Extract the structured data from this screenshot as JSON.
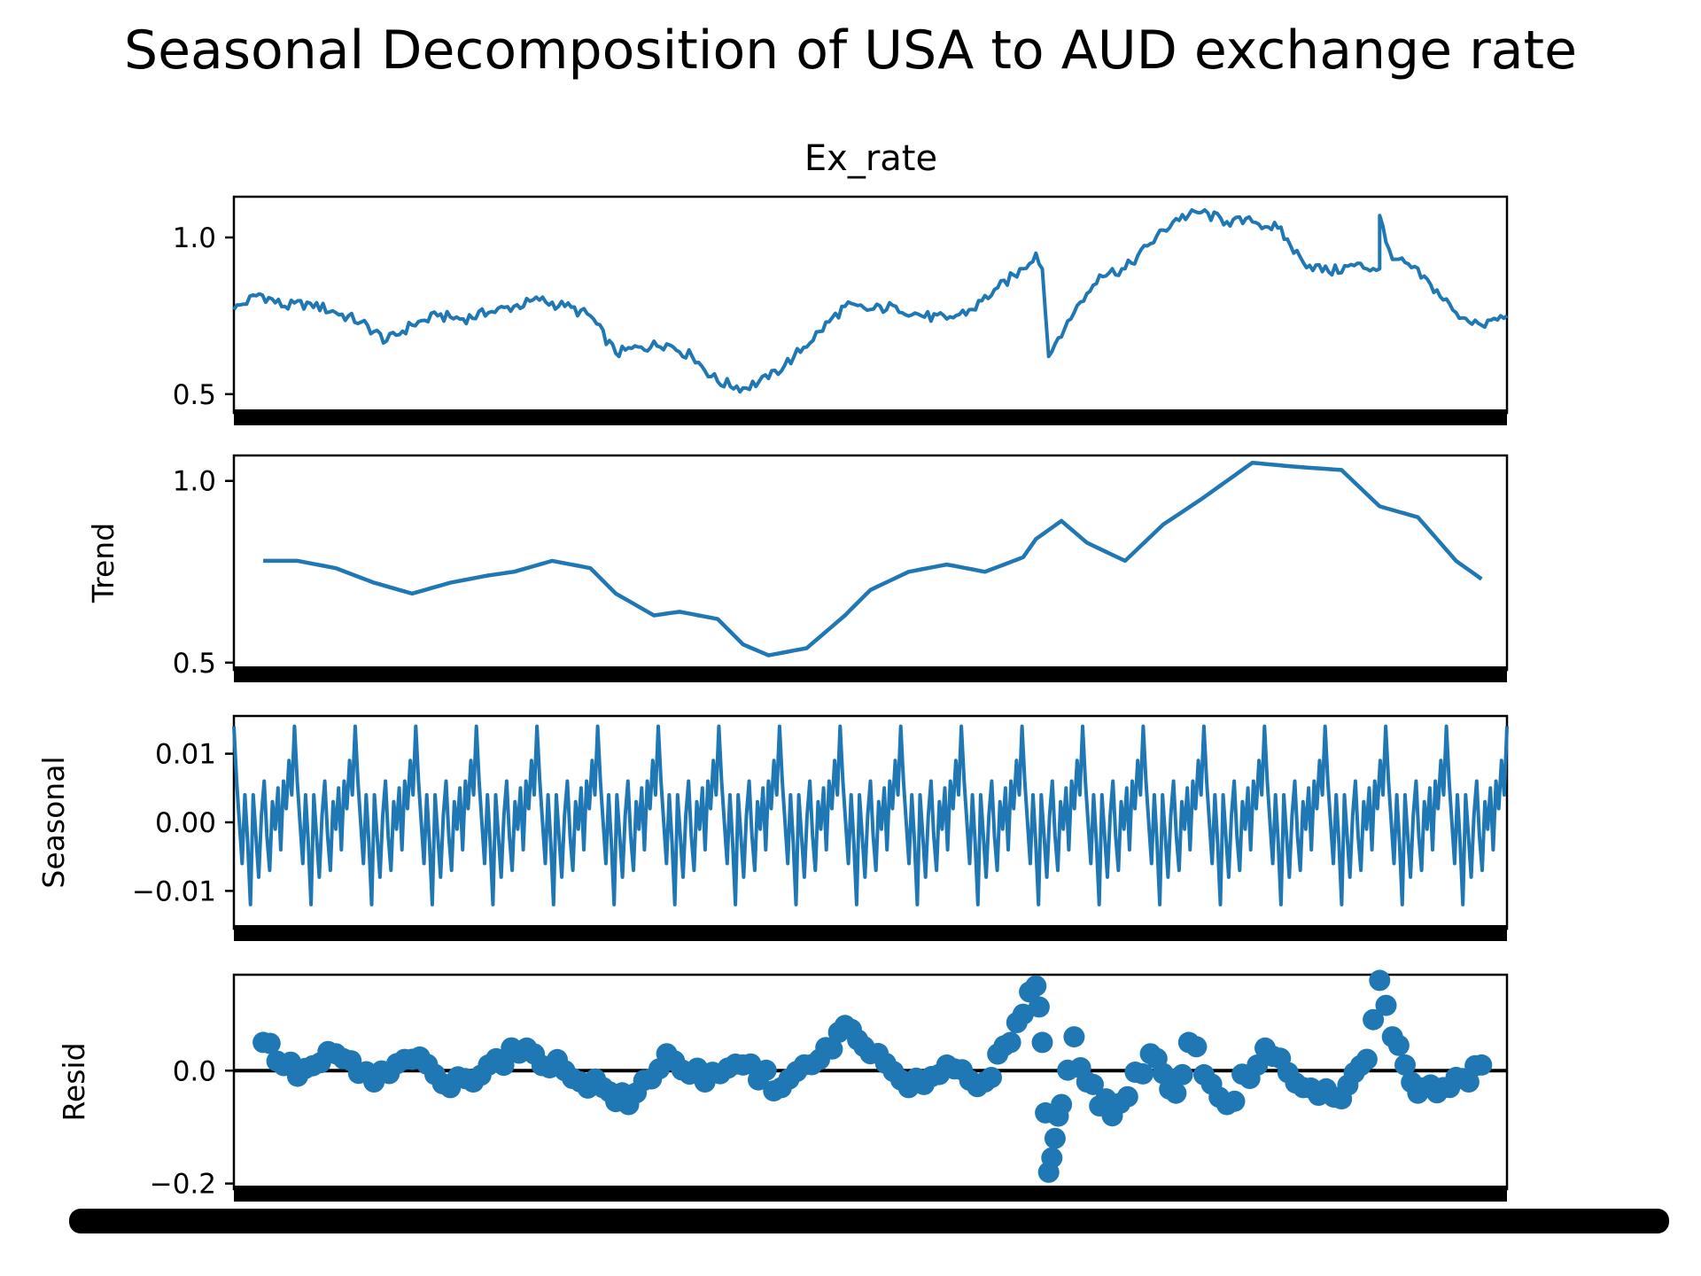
{
  "title": "Seasonal Decomposition of USA to AUD exchange rate",
  "chart_data": [
    {
      "type": "line",
      "panel_title": "Ex_rate",
      "ylabel": "",
      "ylim": [
        0.44,
        1.13
      ],
      "yticks": [
        0.5,
        1.0
      ],
      "ytick_labels": [
        "0.5",
        "1.0"
      ],
      "grid": false,
      "color": "#1f77b4",
      "x": [
        0,
        0.02,
        0.04,
        0.06,
        0.08,
        0.1,
        0.12,
        0.14,
        0.16,
        0.18,
        0.2,
        0.22,
        0.24,
        0.26,
        0.28,
        0.3,
        0.32,
        0.34,
        0.36,
        0.38,
        0.4,
        0.42,
        0.44,
        0.46,
        0.48,
        0.5,
        0.52,
        0.54,
        0.56,
        0.58,
        0.6,
        0.62,
        0.63,
        0.635,
        0.64,
        0.645,
        0.66,
        0.68,
        0.7,
        0.72,
        0.74,
        0.76,
        0.78,
        0.8,
        0.82,
        0.84,
        0.86,
        0.88,
        0.9,
        0.9,
        0.91,
        0.92,
        0.94,
        0.96,
        0.98,
        1.0
      ],
      "values": [
        0.77,
        0.82,
        0.78,
        0.79,
        0.76,
        0.73,
        0.67,
        0.72,
        0.75,
        0.74,
        0.76,
        0.78,
        0.8,
        0.78,
        0.75,
        0.63,
        0.65,
        0.66,
        0.62,
        0.54,
        0.52,
        0.55,
        0.62,
        0.7,
        0.78,
        0.77,
        0.78,
        0.75,
        0.74,
        0.77,
        0.84,
        0.9,
        0.95,
        0.9,
        0.62,
        0.66,
        0.76,
        0.88,
        0.9,
        0.98,
        1.06,
        1.08,
        1.05,
        1.05,
        1.03,
        0.92,
        0.89,
        0.91,
        0.9,
        1.07,
        0.93,
        0.92,
        0.85,
        0.76,
        0.72,
        0.75
      ]
    },
    {
      "type": "line",
      "panel_title": "",
      "ylabel": "Trend",
      "ylim": [
        0.48,
        1.07
      ],
      "yticks": [
        0.5,
        1.0
      ],
      "ytick_labels": [
        "0.5",
        "1.0"
      ],
      "grid": false,
      "color": "#1f77b4",
      "x": [
        0.023,
        0.05,
        0.08,
        0.11,
        0.14,
        0.17,
        0.2,
        0.22,
        0.25,
        0.28,
        0.3,
        0.33,
        0.35,
        0.38,
        0.4,
        0.42,
        0.45,
        0.48,
        0.5,
        0.53,
        0.56,
        0.59,
        0.62,
        0.63,
        0.65,
        0.67,
        0.7,
        0.73,
        0.76,
        0.8,
        0.83,
        0.87,
        0.9,
        0.93,
        0.96,
        0.98
      ],
      "values": [
        0.78,
        0.78,
        0.76,
        0.72,
        0.69,
        0.72,
        0.74,
        0.75,
        0.78,
        0.76,
        0.69,
        0.63,
        0.64,
        0.62,
        0.55,
        0.52,
        0.54,
        0.63,
        0.7,
        0.75,
        0.77,
        0.75,
        0.79,
        0.84,
        0.89,
        0.83,
        0.78,
        0.88,
        0.95,
        1.05,
        1.04,
        1.03,
        0.93,
        0.9,
        0.78,
        0.73
      ]
    },
    {
      "type": "line",
      "panel_title": "",
      "ylabel": "Seasonal",
      "ylim": [
        -0.0155,
        0.0155
      ],
      "yticks": [
        -0.01,
        0.0,
        0.01
      ],
      "ytick_labels": [
        "−0.01",
        "0.00",
        "0.01"
      ],
      "grid": false,
      "color": "#1f77b4",
      "cycles": 21,
      "pattern": [
        0.014,
        0.006,
        0.0,
        -0.006,
        0.004,
        -0.003,
        -0.012,
        0.004,
        -0.002,
        -0.008,
        0.001,
        0.006,
        -0.002,
        -0.007,
        0.003,
        -0.001,
        0.005,
        -0.004,
        0.006,
        0.002,
        0.009,
        0.004
      ]
    },
    {
      "type": "scatter",
      "panel_title": "",
      "ylabel": "Resid",
      "ylim": [
        -0.21,
        0.17
      ],
      "yticks": [
        -0.2,
        0.0
      ],
      "ytick_labels": [
        "−0.2",
        "0.0"
      ],
      "grid": false,
      "color": "#1f77b4",
      "reference_line": 0.0,
      "x": [
        0.023,
        0.05,
        0.08,
        0.11,
        0.14,
        0.17,
        0.2,
        0.23,
        0.26,
        0.29,
        0.31,
        0.34,
        0.37,
        0.4,
        0.43,
        0.46,
        0.48,
        0.5,
        0.53,
        0.56,
        0.59,
        0.61,
        0.62,
        0.63,
        0.635,
        0.64,
        0.645,
        0.65,
        0.66,
        0.67,
        0.69,
        0.72,
        0.74,
        0.75,
        0.78,
        0.81,
        0.84,
        0.87,
        0.89,
        0.9,
        0.91,
        0.93,
        0.95,
        0.97,
        0.98
      ],
      "values": [
        0.05,
        -0.01,
        0.03,
        -0.02,
        0.02,
        -0.03,
        0.01,
        0.04,
        0.0,
        -0.03,
        -0.06,
        0.03,
        -0.02,
        0.01,
        -0.03,
        0.02,
        0.08,
        0.03,
        -0.03,
        0.01,
        -0.02,
        0.05,
        0.1,
        0.15,
        0.05,
        -0.18,
        -0.12,
        -0.06,
        0.06,
        -0.02,
        -0.08,
        0.03,
        -0.04,
        0.05,
        -0.06,
        0.04,
        -0.03,
        -0.05,
        0.02,
        0.16,
        0.06,
        -0.04,
        -0.03,
        -0.02,
        0.01
      ]
    }
  ]
}
